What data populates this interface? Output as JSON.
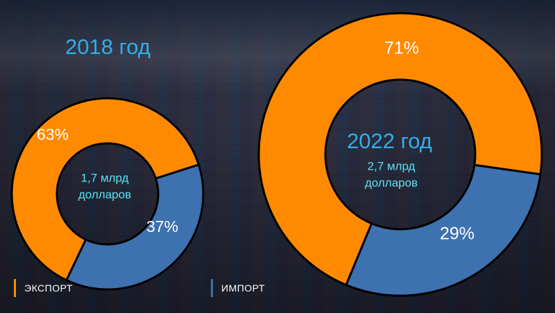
{
  "chart_data": [
    {
      "type": "pie",
      "title": "2018 год",
      "center_label": [
        "1,7 млрд",
        "долларов"
      ],
      "slices": [
        {
          "category": "ЭКСПОРТ",
          "value": 63,
          "label": "63%",
          "color": "#ff8a00"
        },
        {
          "category": "ИМПОРТ",
          "value": 37,
          "label": "37%",
          "color": "#3d71b0"
        }
      ]
    },
    {
      "type": "pie",
      "title": "2022 год",
      "center_label": [
        "2,7 млрд",
        "долларов"
      ],
      "slices": [
        {
          "category": "ЭКСПОРТ",
          "value": 71,
          "label": "71%",
          "color": "#ff8a00"
        },
        {
          "category": "ИМПОРТ",
          "value": 29,
          "label": "29%",
          "color": "#3d71b0"
        }
      ]
    }
  ],
  "legend": [
    {
      "label": "ЭКСПОРТ",
      "color": "#ff8a00"
    },
    {
      "label": "ИМПОРТ",
      "color": "#3d71b0"
    }
  ],
  "colors": {
    "year_title": "#33aee8",
    "center_text": "#5ce0f2"
  }
}
